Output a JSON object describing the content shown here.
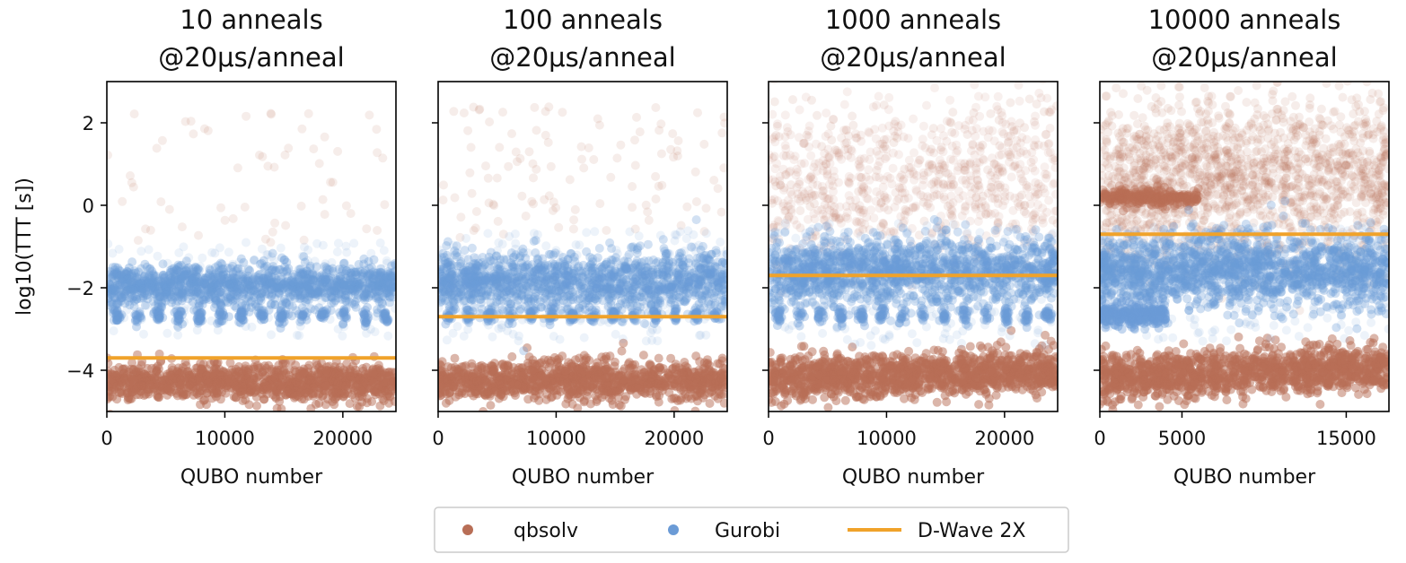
{
  "chart_data": [
    {
      "type": "scatter",
      "title_lines": [
        "10 anneals",
        "@20μs/anneal"
      ],
      "xlabel": "QUBO number",
      "ylabel": "log10(TTT [s])",
      "xlim": [
        0,
        24500
      ],
      "ylim": [
        -5,
        3
      ],
      "xticks": [
        0,
        10000,
        20000
      ],
      "xtick_labels": [
        "0",
        "10000",
        "20000"
      ],
      "yticks": [
        2,
        0,
        -2,
        -4
      ],
      "ytick_labels": [
        "2",
        "0",
        "−2",
        "−4"
      ],
      "dwave_y": -3.7,
      "series": [
        {
          "name": "qbsolv",
          "bands": [
            {
              "center": -4.3,
              "spread": 0.22,
              "n": 1100,
              "alpha": 0.5,
              "drift": 0
            }
          ],
          "sparse": {
            "n": 60,
            "min": -1.0,
            "max": 2.3
          }
        },
        {
          "name": "Gurobi",
          "bands": [
            {
              "center": -1.95,
              "spread": 0.25,
              "n": 1300,
              "alpha": 0.32,
              "drift": 0
            },
            {
              "center": -2.68,
              "spread": 0.1,
              "n": 280,
              "alpha": 0.35,
              "drift": 0,
              "clustered": true
            }
          ],
          "sparse": {
            "n": 140,
            "min": -3.2,
            "max": -0.9
          }
        }
      ]
    },
    {
      "type": "scatter",
      "title_lines": [
        "100 anneals",
        "@20μs/anneal"
      ],
      "xlabel": "QUBO number",
      "xlim": [
        0,
        24500
      ],
      "ylim": [
        -5,
        3
      ],
      "xticks": [
        0,
        10000,
        20000
      ],
      "xtick_labels": [
        "0",
        "10000",
        "20000"
      ],
      "yticks": [
        2,
        0,
        -2,
        -4
      ],
      "dwave_y": -2.7,
      "series": [
        {
          "name": "qbsolv",
          "bands": [
            {
              "center": -4.25,
              "spread": 0.24,
              "n": 1100,
              "alpha": 0.5,
              "drift": 0
            }
          ],
          "sparse": {
            "n": 110,
            "min": -0.8,
            "max": 2.4
          }
        },
        {
          "name": "Gurobi",
          "bands": [
            {
              "center": -1.85,
              "spread": 0.35,
              "n": 1400,
              "alpha": 0.3,
              "drift": 0
            },
            {
              "center": -2.68,
              "spread": 0.1,
              "n": 250,
              "alpha": 0.35,
              "drift": 0,
              "clustered": true
            }
          ],
          "sparse": {
            "n": 200,
            "min": -3.3,
            "max": -0.6
          }
        }
      ]
    },
    {
      "type": "scatter",
      "title_lines": [
        "1000 anneals",
        "@20μs/anneal"
      ],
      "xlabel": "QUBO number",
      "xlim": [
        0,
        24500
      ],
      "ylim": [
        -5,
        3
      ],
      "xticks": [
        0,
        10000,
        20000
      ],
      "xtick_labels": [
        "0",
        "10000",
        "20000"
      ],
      "yticks": [
        2,
        0,
        -2,
        -4
      ],
      "dwave_y": -1.7,
      "series": [
        {
          "name": "qbsolv",
          "bands": [
            {
              "center": -4.2,
              "spread": 0.26,
              "n": 1200,
              "alpha": 0.5,
              "drift": 0.2
            },
            {
              "center": 0.6,
              "spread": 0.9,
              "n": 700,
              "alpha": 0.1,
              "drift": 0
            }
          ],
          "sparse": {
            "n": 120,
            "min": -0.8,
            "max": 2.6
          }
        },
        {
          "name": "Gurobi",
          "bands": [
            {
              "center": -1.6,
              "spread": 0.4,
              "n": 1500,
              "alpha": 0.3,
              "drift": 0
            },
            {
              "center": -2.68,
              "spread": 0.1,
              "n": 260,
              "alpha": 0.35,
              "drift": 0,
              "clustered": true
            }
          ],
          "sparse": {
            "n": 200,
            "min": -3.4,
            "max": -0.4
          }
        }
      ]
    },
    {
      "type": "scatter",
      "title_lines": [
        "10000 anneals",
        "@20μs/anneal"
      ],
      "xlabel": "QUBO number",
      "xlim": [
        0,
        17600
      ],
      "ylim": [
        -5,
        3
      ],
      "xticks": [
        0,
        5000,
        15000
      ],
      "xtick_labels": [
        "0",
        "5000",
        "15000"
      ],
      "yticks": [
        2,
        0,
        -2,
        -4
      ],
      "dwave_y": -0.7,
      "series": [
        {
          "name": "qbsolv",
          "bands": [
            {
              "center": -4.15,
              "spread": 0.27,
              "n": 1200,
              "alpha": 0.5,
              "drift": 0.2
            },
            {
              "center": 0.6,
              "spread": 0.95,
              "n": 1500,
              "alpha": 0.12,
              "drift": 0
            },
            {
              "center": 0.2,
              "spread": 0.1,
              "n": 250,
              "alpha": 0.4,
              "drift": 0,
              "xmax": 6000
            }
          ],
          "sparse": {
            "n": 120,
            "min": -0.5,
            "max": 2.7
          }
        },
        {
          "name": "Gurobi",
          "bands": [
            {
              "center": -1.6,
              "spread": 0.45,
              "n": 1600,
              "alpha": 0.32,
              "drift": 0
            },
            {
              "center": -2.65,
              "spread": 0.13,
              "n": 260,
              "alpha": 0.4,
              "drift": 0,
              "xmax": 4000
            }
          ],
          "sparse": {
            "n": 200,
            "min": -3.3,
            "max": -0.5
          }
        }
      ]
    }
  ],
  "legend": {
    "items": [
      {
        "label": "qbsolv",
        "kind": "marker"
      },
      {
        "label": "Gurobi",
        "kind": "marker"
      },
      {
        "label": "D-Wave 2X",
        "kind": "line"
      }
    ]
  },
  "colors": {
    "qbsolv": "#b86e56",
    "gurobi": "#6b9bd6",
    "dwave": "#f0a22a",
    "axis": "#000000"
  }
}
